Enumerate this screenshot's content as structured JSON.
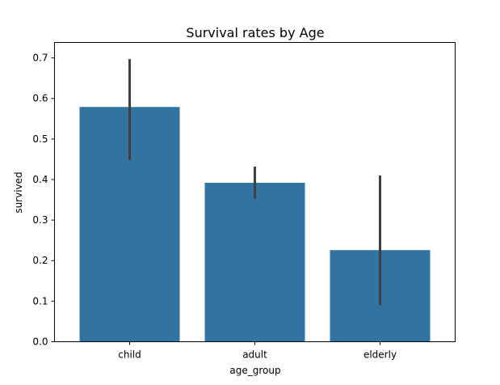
{
  "chart_data": {
    "type": "bar",
    "title": "Survival rates by Age",
    "xlabel": "age_group",
    "ylabel": "survived",
    "categories": [
      "child",
      "adult",
      "elderly"
    ],
    "values": [
      0.579,
      0.392,
      0.226
    ],
    "error_bars": [
      {
        "low": 0.448,
        "high": 0.697
      },
      {
        "low": 0.353,
        "high": 0.432
      },
      {
        "low": 0.09,
        "high": 0.41
      }
    ],
    "ylim": [
      0,
      0.7381
    ],
    "yticks": [
      "0.0",
      "0.1",
      "0.2",
      "0.3",
      "0.4",
      "0.5",
      "0.6",
      "0.7"
    ],
    "grid": false,
    "legend": "none",
    "colors": {
      "bar": "#3274a1",
      "error_bar": "#3f3f3f"
    }
  }
}
